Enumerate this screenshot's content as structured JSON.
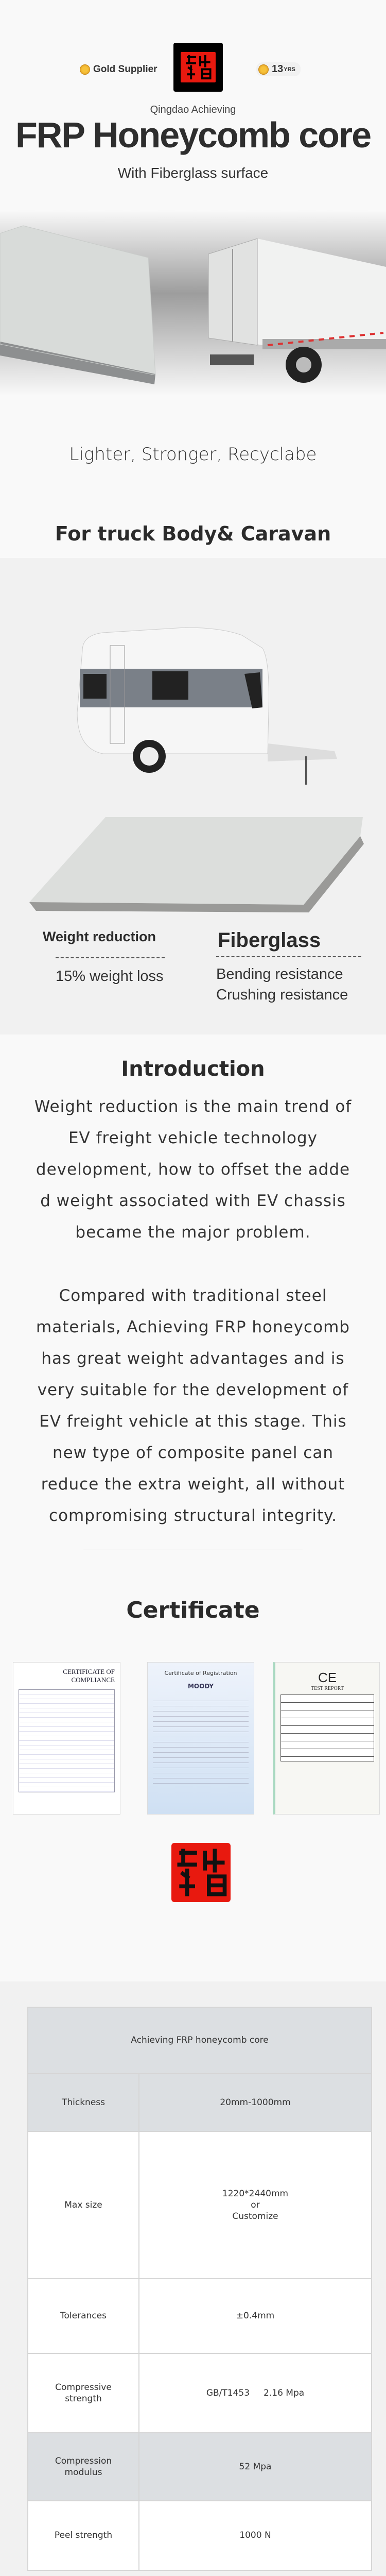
{
  "header": {
    "gold_supplier": "Gold Supplier",
    "years_number": "13",
    "years_unit": "YRS",
    "company": "Qingdao Achieving",
    "title": "FRP Honeycomb core",
    "subtitle": "With Fiberglass surface"
  },
  "hero": {
    "tagline": "Lighter,  Stronger, Recyclabe",
    "application_heading": "For truck Body& Caravan"
  },
  "features": {
    "left_heading": "Weight reduction",
    "left_text": "15% weight loss",
    "right_heading": "Fiberglass",
    "right_lines": [
      "Bending resistance",
      "Crushing resistance"
    ]
  },
  "introduction": {
    "heading": "Introduction",
    "paragraphs": [
      "Weight reduction is the main trend of EV freight vehicle technology development, how to offset the adde d weight associated with EV chassis became the major problem.",
      "Compared with traditional steel materials, Achieving FRP honeycomb has great weight advantages and is very suitable for the development of EV freight vehicle at this stage. This new type of composite panel can reduce the extra weight, all without compromising structural integrity."
    ]
  },
  "certificate": {
    "heading": "Certificate",
    "items": [
      {
        "title": "CERTIFICATE OF COMPLIANCE"
      },
      {
        "title": "Certificate of Registration",
        "brand": "MOODY"
      },
      {
        "title": "TEST REPORT",
        "mark": "CE"
      }
    ]
  },
  "spec_table": {
    "title": "Achieving FRP honeycomb core",
    "rows": [
      {
        "label": "Thickness",
        "value": "20mm-1000mm"
      },
      {
        "label": "Max size",
        "value_lines": [
          "1220*2440mm",
          "or",
          "Customize"
        ]
      },
      {
        "label": "Tolerances",
        "value": "±0.4mm"
      },
      {
        "label": "Compressive strength",
        "value": "GB/T1453     2.16 Mpa"
      },
      {
        "label": "Compression modulus",
        "value": "52 Mpa"
      },
      {
        "label": "Peel strength",
        "value": "1000 N"
      }
    ]
  },
  "colors": {
    "seal_red": "#e8190f",
    "table_header": "#dcdfe2",
    "section_gray": "#f1f1f1",
    "text": "#2b2b2b"
  }
}
